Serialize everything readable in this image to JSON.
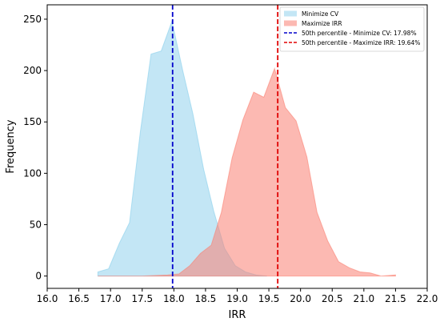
{
  "chart_data": {
    "type": "area",
    "xlabel": "IRR",
    "ylabel": "Frequency",
    "xlim": [
      16.0,
      22.0
    ],
    "ylim": [
      -12,
      264
    ],
    "x_ticks": [
      16.0,
      16.5,
      17.0,
      17.5,
      18.0,
      18.5,
      19.0,
      19.5,
      20.0,
      20.5,
      21.0,
      21.5,
      22.0
    ],
    "x_tick_labels": [
      "16.0",
      "16.5",
      "17.0",
      "17.5",
      "18.0",
      "18.5",
      "19.0",
      "19.5",
      "20.0",
      "20.5",
      "21.0",
      "21.5",
      "22.0"
    ],
    "y_ticks": [
      0,
      50,
      100,
      150,
      200,
      250
    ],
    "y_tick_labels": [
      "0",
      "50",
      "100",
      "150",
      "200",
      "250"
    ],
    "grid": false,
    "legend_position": "top-right",
    "series": [
      {
        "name": "Minimize CV",
        "color": "#87ceeb",
        "x": [
          16.8,
          16.97,
          17.14,
          17.3,
          17.47,
          17.64,
          17.8,
          17.97,
          18.14,
          18.3,
          18.47,
          18.63,
          18.8,
          18.97,
          19.13,
          19.3,
          19.47
        ],
        "values": [
          4,
          7,
          32,
          52,
          140,
          216,
          219,
          248,
          200,
          158,
          104,
          63,
          27,
          10,
          4,
          1,
          0
        ]
      },
      {
        "name": "Maximize IRR",
        "color": "#fa8072",
        "x": [
          16.8,
          17.5,
          17.9,
          18.08,
          18.25,
          18.42,
          18.59,
          18.75,
          18.92,
          19.09,
          19.26,
          19.42,
          19.59,
          19.76,
          19.93,
          20.1,
          20.26,
          20.43,
          20.6,
          20.77,
          20.94,
          21.1,
          21.27,
          21.5
        ],
        "values": [
          0,
          0,
          1,
          2,
          10,
          22,
          30,
          62,
          115,
          152,
          179,
          174,
          202,
          164,
          151,
          116,
          62,
          34,
          14,
          8,
          4,
          3,
          0,
          1
        ]
      }
    ],
    "reference_lines": [
      {
        "label": "50th percentile - Minimize CV: 17.98%",
        "x": 17.98,
        "color": "#0000cc",
        "style": "dashed"
      },
      {
        "label": "50th percentile - Maximize IRR: 19.64%",
        "x": 19.64,
        "color": "#e00000",
        "style": "dashed"
      }
    ]
  }
}
